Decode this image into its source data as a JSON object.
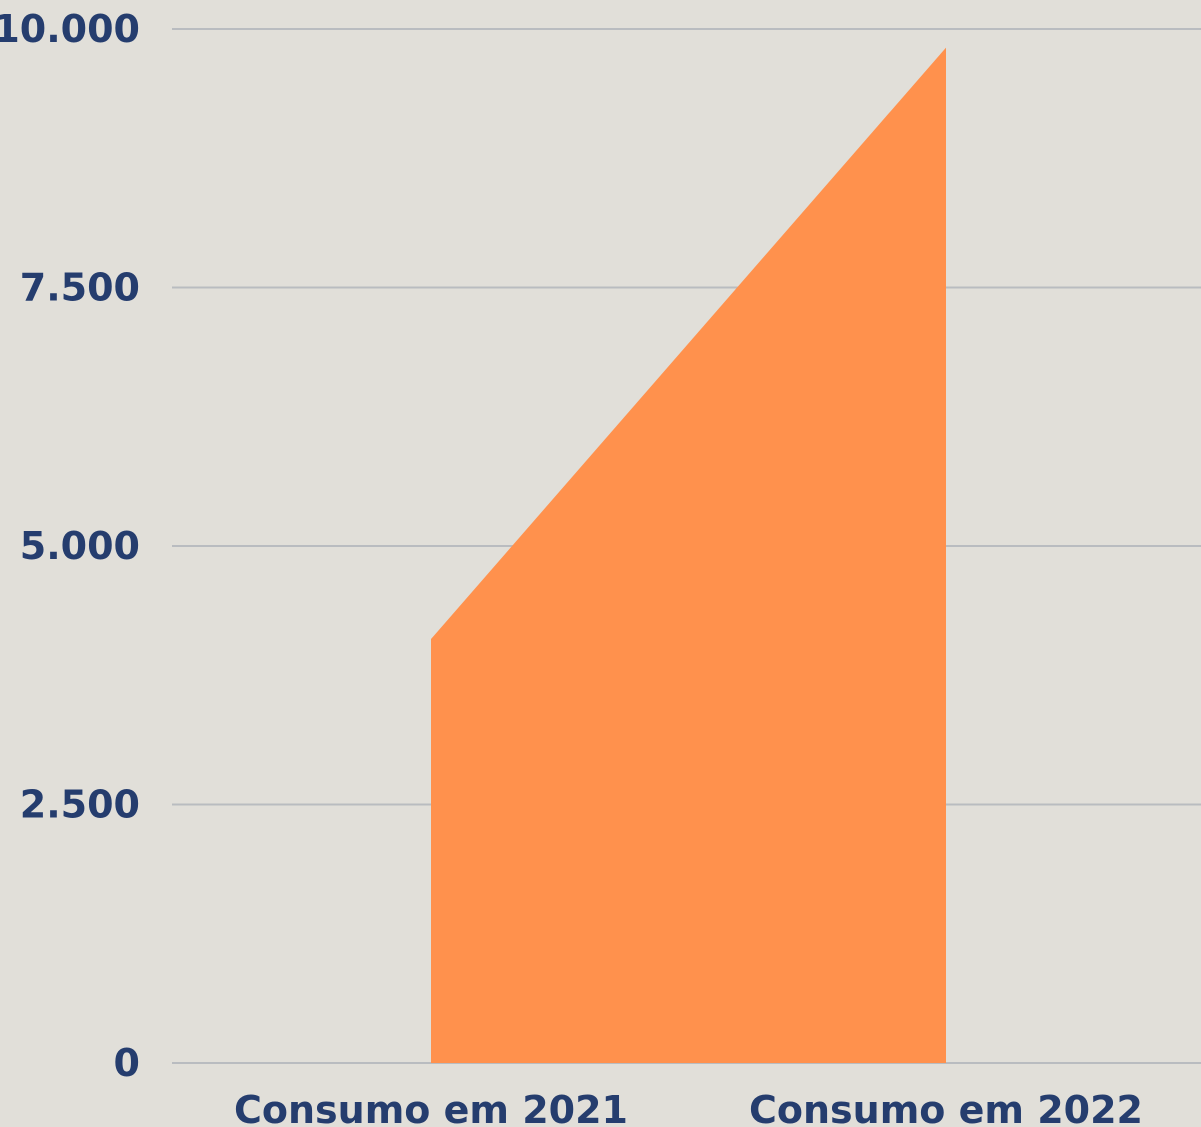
{
  "chart_data": {
    "type": "area",
    "categories": [
      "Consumo em 2021",
      "Consumo em 2022"
    ],
    "series": [
      {
        "values": [
          4100,
          9820
        ],
        "color": "#ff914d"
      }
    ],
    "ylim": [
      0,
      10000
    ],
    "yticks": [
      0,
      2500,
      5000,
      7500,
      10000
    ],
    "ytick_labels": [
      "0",
      "2.500",
      "5.000",
      "7.500",
      "10.000"
    ],
    "grid": true,
    "legend": "none",
    "colors": {
      "background": "#e1dfd9",
      "text": "#253d6e",
      "grid": "#b9bcc0"
    }
  }
}
